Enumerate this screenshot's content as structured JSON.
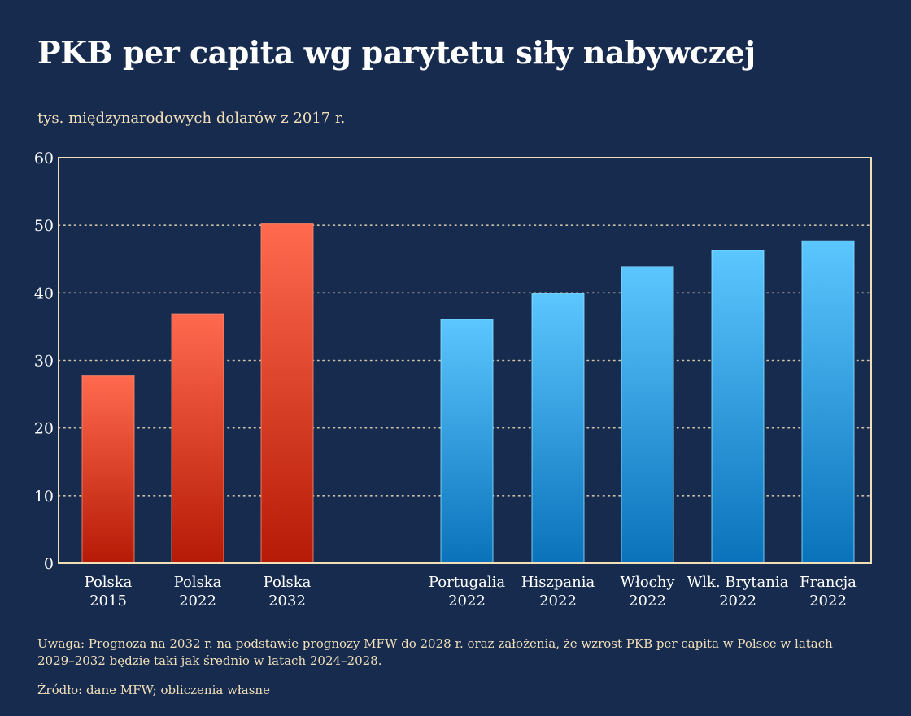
{
  "title": "PKB per capita wg parytetu siły nabywczej",
  "subtitle": "tys. międzynarodowych dolarów z 2017 r.",
  "note": "Uwaga: Prognoza na 2032 r. na podstawie prognozy MFW do 2028 r. oraz założenia, że wzrost PKB per capita w Polsce w latach 2029–2032 będzie taki jak średnio w latach 2024–2028.",
  "source": "Źródło: dane MFW; obliczenia własne",
  "colors": {
    "background": "#172b4f",
    "poland_top": "#ff6a4e",
    "poland_bottom": "#b51a06",
    "others_top": "#5cc6ff",
    "others_bottom": "#0a72ba",
    "frame": "#f1dfb8",
    "grid": "#f1dfb8"
  },
  "chart_data": {
    "type": "bar",
    "categories": [
      [
        "Polska",
        "2015"
      ],
      [
        "Polska",
        "2022"
      ],
      [
        "Polska",
        "2032"
      ],
      [
        "Portugalia",
        "2022"
      ],
      [
        "Hiszpania",
        "2022"
      ],
      [
        "Włochy",
        "2022"
      ],
      [
        "Wlk. Brytania",
        "2022"
      ],
      [
        "Francja",
        "2022"
      ]
    ],
    "values": [
      27.7,
      36.9,
      50.2,
      36.1,
      39.9,
      43.9,
      46.3,
      47.7
    ],
    "groups": [
      "poland",
      "poland",
      "poland",
      "others",
      "others",
      "others",
      "others",
      "others"
    ],
    "ylim": [
      0,
      60
    ],
    "yticks": [
      0,
      10,
      20,
      30,
      40,
      50,
      60
    ],
    "grid": true,
    "grid_style": "dotted",
    "legend": "none"
  }
}
